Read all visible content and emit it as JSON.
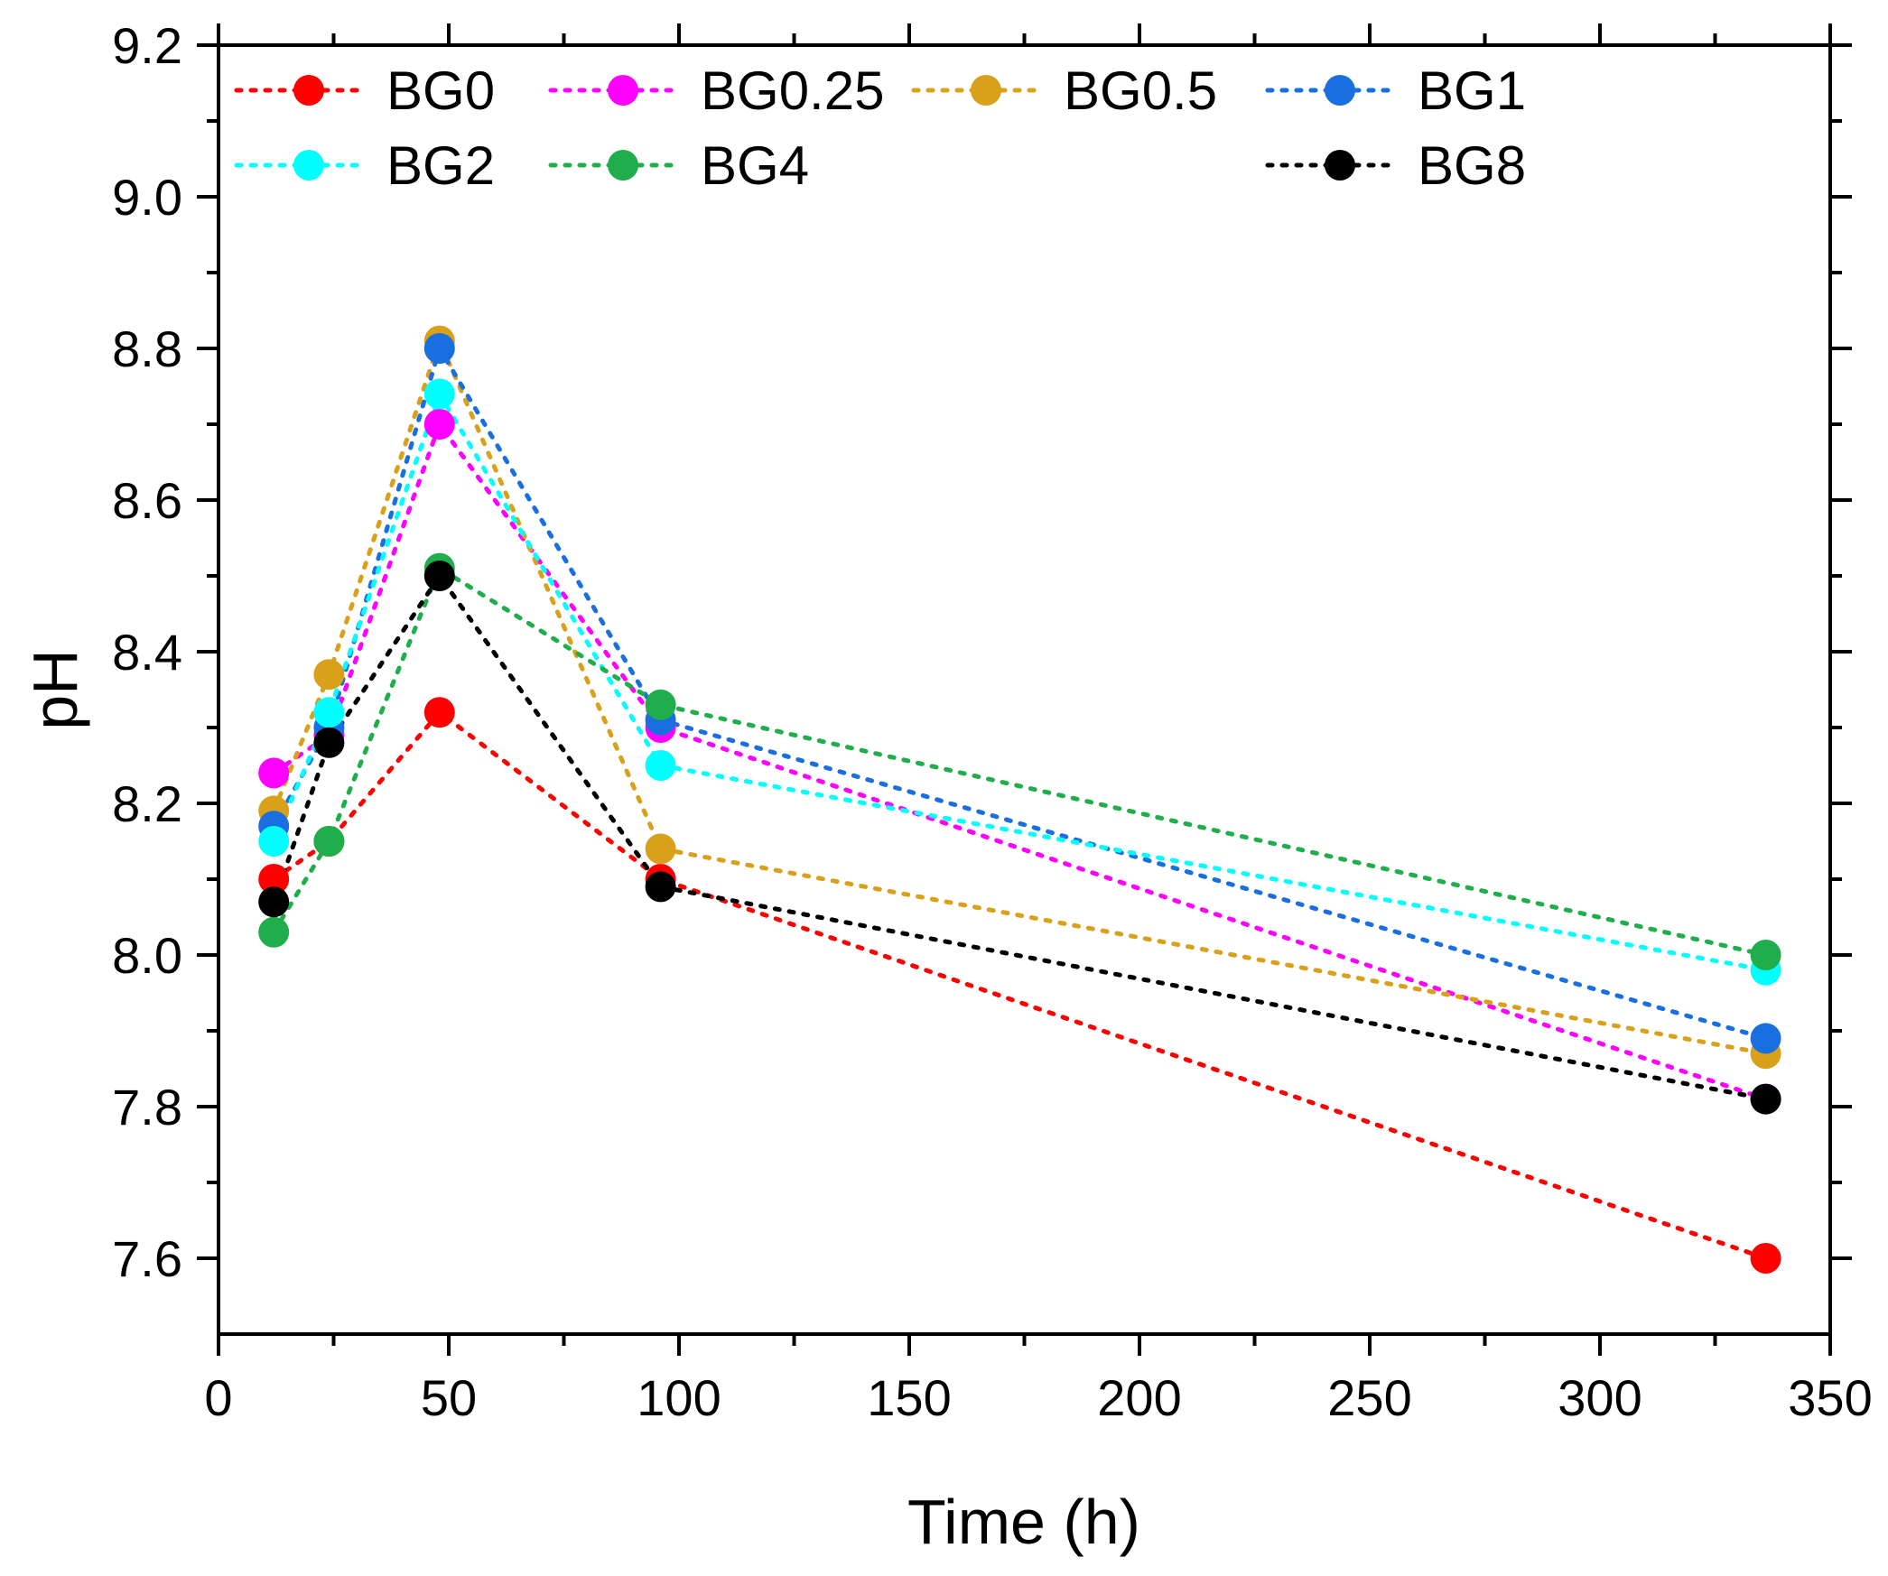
{
  "chart_data": {
    "type": "line",
    "xlabel": "Time (h)",
    "ylabel": "pH",
    "xlim": [
      0,
      350
    ],
    "ylim": [
      7.5,
      9.2
    ],
    "x_ticks": [
      0,
      50,
      100,
      150,
      200,
      250,
      300,
      350
    ],
    "x_tick_labels": [
      "0",
      "50",
      "100",
      "150",
      "200",
      "250",
      "300",
      "350"
    ],
    "y_ticks": [
      7.6,
      7.8,
      8.0,
      8.2,
      8.4,
      8.6,
      8.8,
      9.0,
      9.2
    ],
    "y_tick_labels": [
      "7.6",
      "7.8",
      "8.0",
      "8.2",
      "8.4",
      "8.6",
      "8.8",
      "9.0",
      "9.2"
    ],
    "line_style": "dotted",
    "marker": "circle",
    "legend": "top",
    "x": [
      12,
      24,
      48,
      96,
      336
    ],
    "series": [
      {
        "name": "BG0",
        "color": "#ff0000",
        "values": [
          8.1,
          8.15,
          8.32,
          8.1,
          7.6
        ]
      },
      {
        "name": "BG0.25",
        "color": "#ff00ff",
        "values": [
          8.24,
          8.29,
          8.7,
          8.3,
          7.81
        ]
      },
      {
        "name": "BG0.5",
        "color": "#d9a01a",
        "values": [
          8.19,
          8.37,
          8.81,
          8.14,
          7.87
        ]
      },
      {
        "name": "BG1",
        "color": "#1a6fe0",
        "values": [
          8.17,
          8.3,
          8.8,
          8.31,
          7.89
        ]
      },
      {
        "name": "BG2",
        "color": "#00ffff",
        "values": [
          8.15,
          8.32,
          8.74,
          8.25,
          7.98
        ]
      },
      {
        "name": "BG4",
        "color": "#1fae4b",
        "values": [
          8.03,
          8.15,
          8.51,
          8.33,
          8.0
        ]
      },
      {
        "name": "BG8",
        "color": "#000000",
        "values": [
          8.07,
          8.28,
          8.5,
          8.09,
          7.81
        ]
      }
    ]
  }
}
